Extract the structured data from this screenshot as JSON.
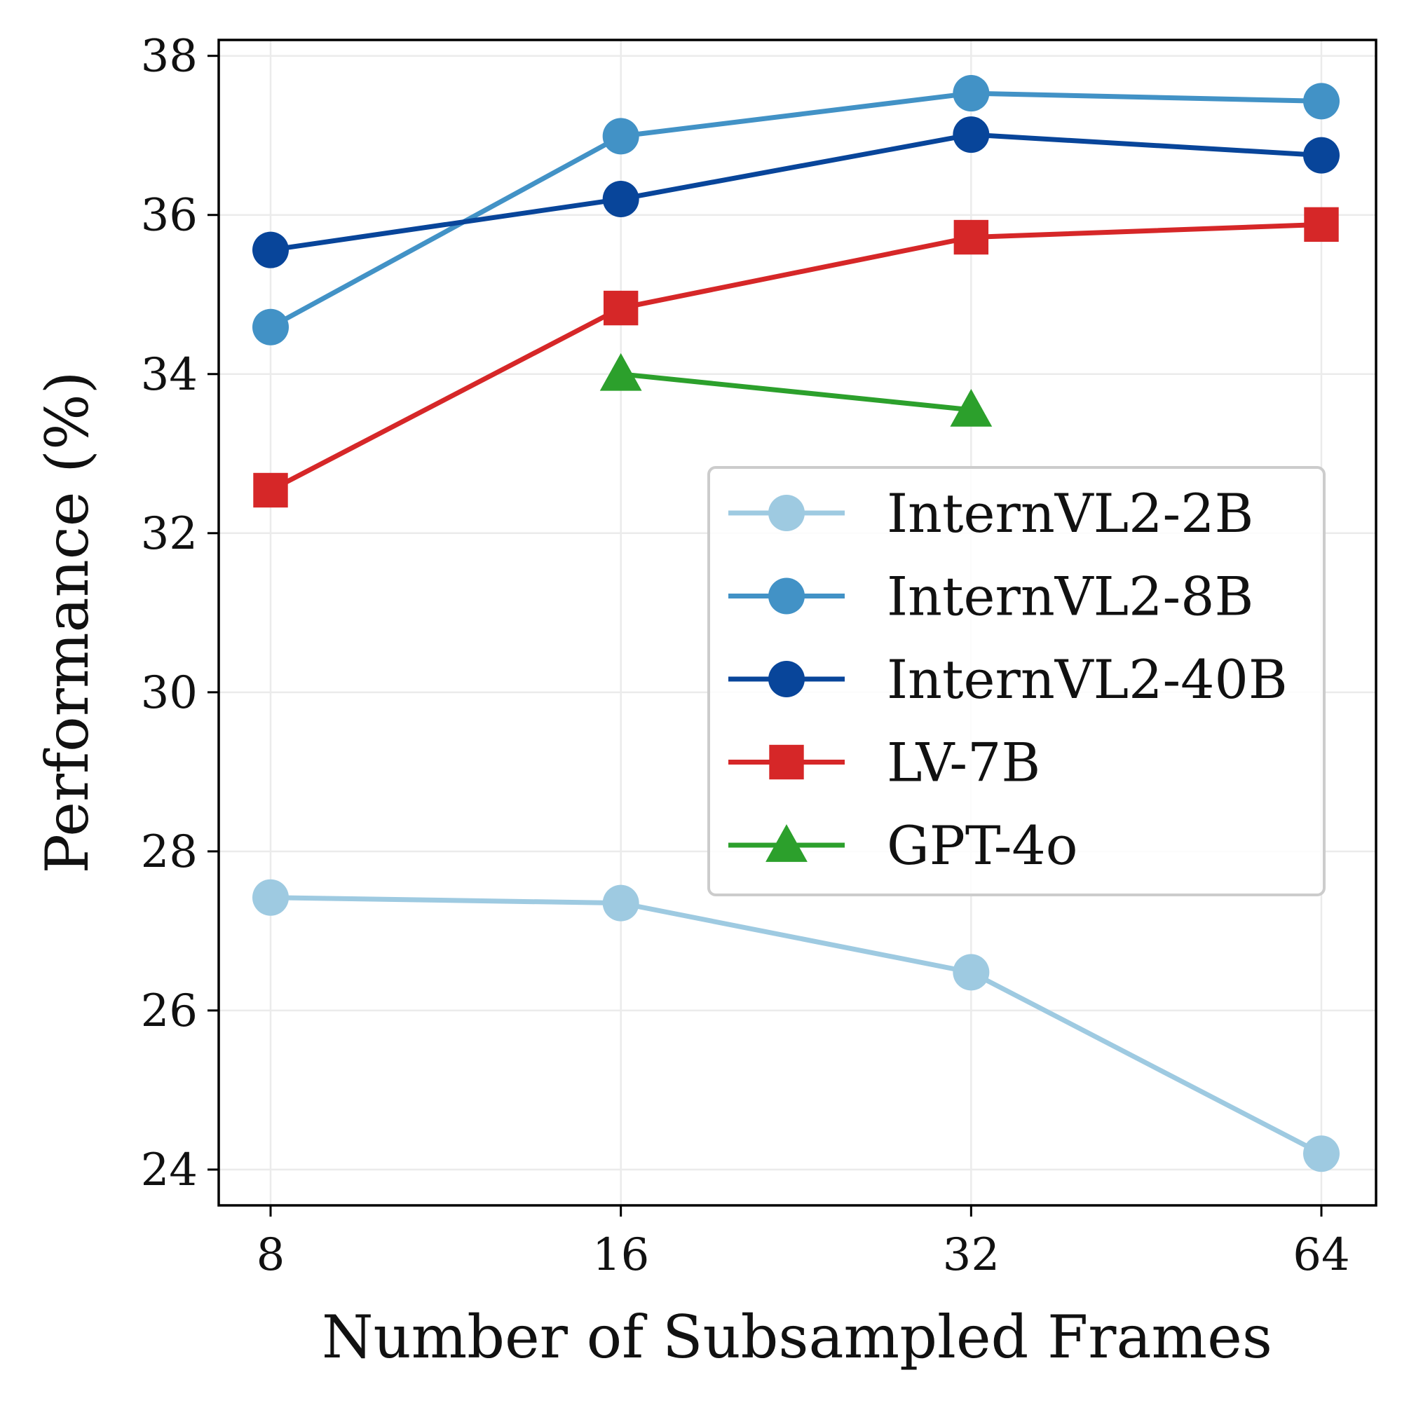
{
  "chart_data": {
    "type": "line",
    "x_scale": "log2",
    "x": [
      8,
      16,
      32,
      64
    ],
    "xticks": [
      "8",
      "16",
      "32",
      "64"
    ],
    "yticks": [
      "24",
      "26",
      "28",
      "30",
      "32",
      "34",
      "36",
      "38"
    ],
    "ylim": [
      23.55,
      38.2
    ],
    "xlabel": "Number of Subsampled Frames",
    "ylabel": "Performance (%)",
    "grid": true,
    "legend_position": "center-right",
    "series": [
      {
        "name": "InternVL2-2B",
        "values": [
          27.42,
          27.35,
          26.48,
          24.2
        ],
        "color": "#9ecae1",
        "marker": "circle"
      },
      {
        "name": "InternVL2-8B",
        "values": [
          34.59,
          36.99,
          37.53,
          37.43
        ],
        "color": "#4292c6",
        "marker": "circle"
      },
      {
        "name": "InternVL2-40B",
        "values": [
          35.56,
          36.2,
          37.01,
          36.75
        ],
        "color": "#08459a",
        "marker": "circle"
      },
      {
        "name": "LV-7B",
        "values": [
          32.54,
          34.83,
          35.72,
          35.88
        ],
        "color": "#d62728",
        "marker": "square"
      },
      {
        "name": "GPT-4o",
        "values": [
          null,
          34.0,
          33.55,
          null
        ],
        "color": "#2ca02c",
        "marker": "triangle"
      }
    ]
  }
}
